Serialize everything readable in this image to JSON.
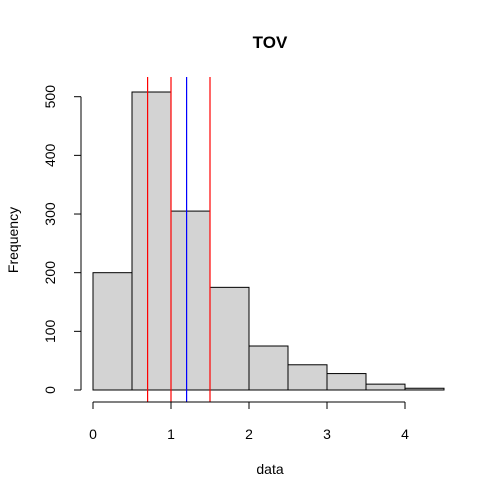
{
  "chart_data": {
    "type": "bar",
    "title": "TOV",
    "xlabel": "data",
    "ylabel": "Frequency",
    "bin_edges": [
      0,
      0.5,
      1,
      1.5,
      2,
      2.5,
      3,
      3.5,
      4,
      4.5
    ],
    "values": [
      200,
      508,
      305,
      175,
      75,
      43,
      28,
      10,
      3
    ],
    "x_ticks": [
      0,
      1,
      2,
      3,
      4
    ],
    "y_ticks": [
      0,
      100,
      200,
      300,
      400,
      500
    ],
    "xlim": [
      0,
      4.5
    ],
    "ylim": [
      0,
      508
    ],
    "bar_fill": "#d3d3d3",
    "bar_stroke": "#000000",
    "vlines": [
      {
        "x": 0.7,
        "color": "#ff0000"
      },
      {
        "x": 1.0,
        "color": "#ff0000"
      },
      {
        "x": 1.5,
        "color": "#ff0000"
      },
      {
        "x": 1.2,
        "color": "#0000ff"
      }
    ],
    "grid": false,
    "legend": "none"
  }
}
